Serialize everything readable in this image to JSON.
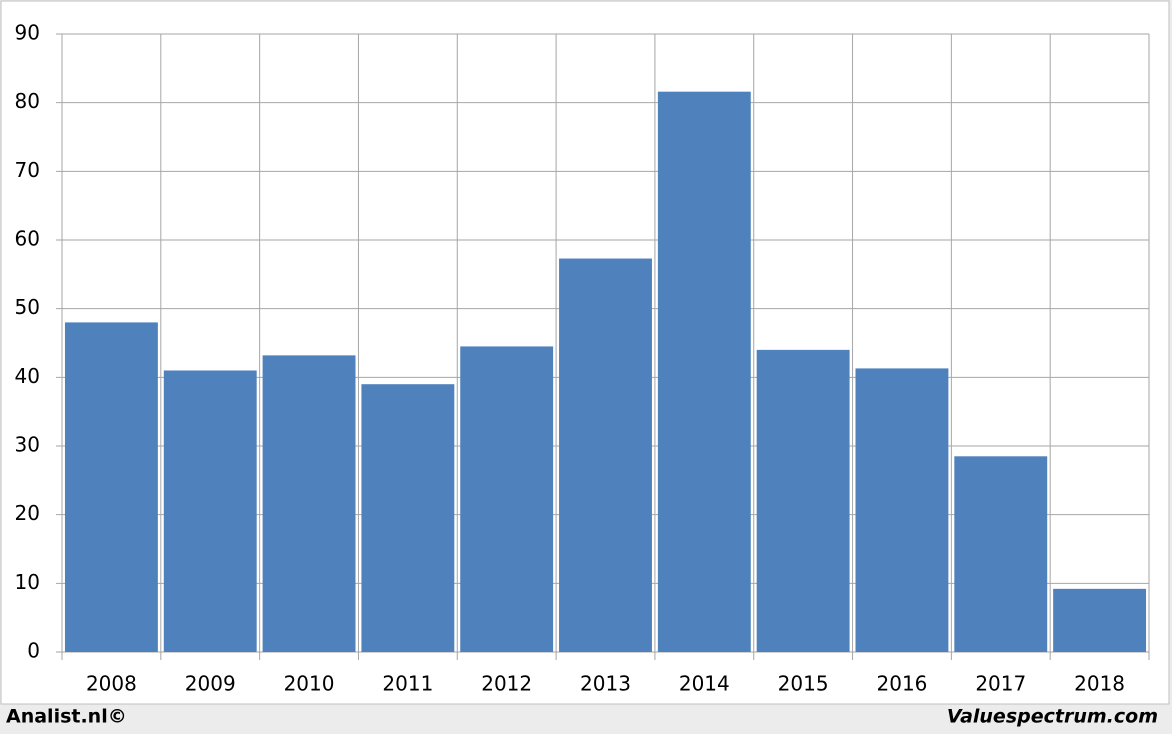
{
  "chart_data": {
    "type": "bar",
    "categories": [
      "2008",
      "2009",
      "2010",
      "2011",
      "2012",
      "2013",
      "2014",
      "2015",
      "2016",
      "2017",
      "2018"
    ],
    "values": [
      48,
      41,
      43.2,
      39,
      44.5,
      57.3,
      81.6,
      44,
      41.3,
      28.5,
      9.2
    ],
    "color": "#4f81bd",
    "ylim": [
      0,
      90
    ],
    "yticks": [
      0,
      10,
      20,
      30,
      40,
      50,
      60,
      70,
      80,
      90
    ],
    "grid": true,
    "annotations": [
      "Analist.nl©",
      "Valuespectrum.com"
    ]
  }
}
